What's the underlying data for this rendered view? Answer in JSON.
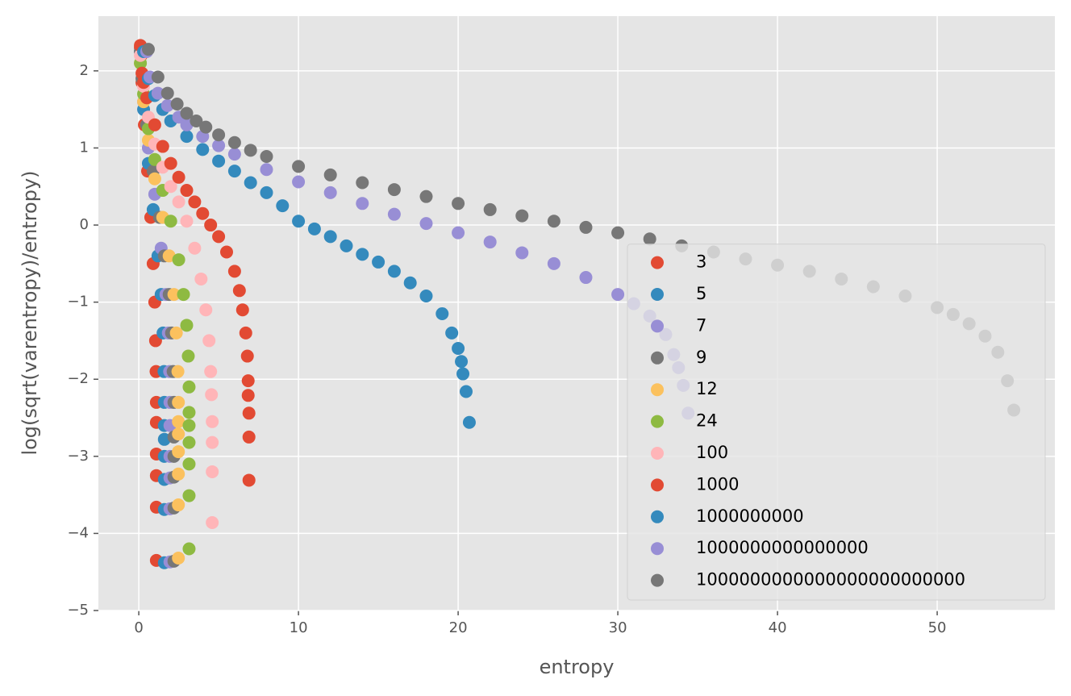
{
  "chart_data": {
    "type": "scatter",
    "xlabel": "entropy",
    "ylabel": "log(sqrt(varentropy)/entropy)",
    "xlim": [
      -2.53,
      57.37
    ],
    "ylim": [
      -5,
      2.71
    ],
    "xticks": [
      0,
      10,
      20,
      30,
      40,
      50
    ],
    "yticks": [
      {
        "value": -5,
        "label": "−5"
      },
      {
        "value": -4,
        "label": "−4"
      },
      {
        "value": -3,
        "label": "−3"
      },
      {
        "value": -2,
        "label": "−2"
      },
      {
        "value": -1,
        "label": "−1"
      },
      0,
      1,
      2
    ],
    "grid": true,
    "legend": "lower right",
    "series": [
      {
        "name": "3",
        "color": "#E24A33",
        "x": [
          0.1,
          0.15,
          0.2,
          0.35,
          0.55,
          0.75,
          0.9,
          1.0,
          1.05,
          1.08,
          1.1,
          1.1,
          1.1,
          1.1,
          1.1,
          1.1
        ],
        "values": [
          2.3,
          2.2,
          1.85,
          1.3,
          0.7,
          0.1,
          -0.5,
          -1.0,
          -1.5,
          -1.9,
          -2.3,
          -2.56,
          -2.97,
          -3.25,
          -3.66,
          -4.35
        ]
      },
      {
        "name": "5",
        "color": "#348ABD",
        "x": [
          0.1,
          0.3,
          0.6,
          0.9,
          1.2,
          1.4,
          1.52,
          1.58,
          1.6,
          1.6,
          1.6,
          1.6,
          1.6,
          1.6,
          1.6
        ],
        "values": [
          2.25,
          1.5,
          0.8,
          0.2,
          -0.4,
          -0.9,
          -1.4,
          -1.9,
          -2.3,
          -2.6,
          -2.78,
          -3.0,
          -3.3,
          -3.69,
          -4.38
        ]
      },
      {
        "name": "7",
        "color": "#988ED5",
        "x": [
          0.1,
          0.3,
          0.6,
          1.0,
          1.4,
          1.7,
          1.85,
          1.93,
          1.95,
          1.95,
          1.95,
          1.95,
          1.95,
          1.95
        ],
        "values": [
          2.25,
          1.6,
          1.0,
          0.4,
          -0.3,
          -0.9,
          -1.4,
          -1.9,
          -2.3,
          -2.6,
          -3.0,
          -3.28,
          -3.68,
          -4.37
        ]
      },
      {
        "name": "9",
        "color": "#777777",
        "x": [
          0.1,
          0.2,
          0.5,
          0.9,
          1.3,
          1.6,
          1.9,
          2.05,
          2.15,
          2.2,
          2.2,
          2.2,
          2.2,
          2.2,
          2.2
        ],
        "values": [
          2.25,
          1.9,
          1.3,
          0.7,
          0.1,
          -0.4,
          -0.9,
          -1.4,
          -1.9,
          -2.3,
          -2.75,
          -3.0,
          -3.27,
          -3.67,
          -4.36
        ]
      },
      {
        "name": "12",
        "color": "#FBC15E",
        "x": [
          0.1,
          0.3,
          0.6,
          1.0,
          1.5,
          1.9,
          2.2,
          2.35,
          2.45,
          2.48,
          2.48,
          2.48,
          2.48,
          2.48,
          2.48,
          2.48
        ],
        "values": [
          2.1,
          1.6,
          1.1,
          0.6,
          0.1,
          -0.4,
          -0.9,
          -1.4,
          -1.9,
          -2.3,
          -2.55,
          -2.71,
          -2.94,
          -3.23,
          -3.63,
          -4.32
        ]
      },
      {
        "name": "24",
        "color": "#8EBA42",
        "x": [
          0.1,
          0.3,
          0.6,
          1.0,
          1.5,
          2.0,
          2.5,
          2.8,
          3.0,
          3.1,
          3.15,
          3.15,
          3.15,
          3.15,
          3.15,
          3.15,
          3.15
        ],
        "values": [
          2.1,
          1.7,
          1.25,
          0.85,
          0.45,
          0.05,
          -0.45,
          -0.9,
          -1.3,
          -1.7,
          -2.1,
          -2.43,
          -2.6,
          -2.82,
          -3.1,
          -3.51,
          -4.2
        ]
      },
      {
        "name": "100",
        "color": "#FFB5B8",
        "x": [
          0.1,
          0.3,
          0.6,
          1.0,
          1.5,
          2.0,
          2.5,
          3.0,
          3.5,
          3.9,
          4.2,
          4.4,
          4.5,
          4.55,
          4.6,
          4.6,
          4.6,
          4.6
        ],
        "values": [
          2.2,
          1.8,
          1.4,
          1.05,
          0.75,
          0.5,
          0.3,
          0.05,
          -0.3,
          -0.7,
          -1.1,
          -1.5,
          -1.9,
          -2.2,
          -2.55,
          -2.82,
          -3.2,
          -3.86
        ]
      },
      {
        "name": "1000",
        "color": "#E24A33",
        "x": [
          0.1,
          0.2,
          0.3,
          0.5,
          1.0,
          1.5,
          2.0,
          2.5,
          3.0,
          3.5,
          4.0,
          4.5,
          5.0,
          5.5,
          6.0,
          6.3,
          6.5,
          6.7,
          6.8,
          6.85,
          6.85,
          6.9,
          6.9,
          6.9
        ],
        "values": [
          2.33,
          1.97,
          1.85,
          1.65,
          1.3,
          1.02,
          0.8,
          0.62,
          0.45,
          0.3,
          0.15,
          0,
          -0.15,
          -0.35,
          -0.6,
          -0.85,
          -1.1,
          -1.4,
          -1.7,
          -2.02,
          -2.21,
          -2.44,
          -2.75,
          -3.31
        ]
      },
      {
        "name": "1000000000",
        "color": "#348ABD",
        "x": [
          0.3,
          0.6,
          1,
          1.5,
          2,
          3,
          4,
          5,
          6,
          7,
          8,
          9,
          10,
          11,
          12,
          13,
          14,
          15,
          16,
          17,
          18,
          19,
          19.6,
          20,
          20.2,
          20.3,
          20.5,
          20.7
        ],
        "values": [
          2.25,
          1.9,
          1.68,
          1.5,
          1.35,
          1.15,
          0.98,
          0.83,
          0.7,
          0.55,
          0.42,
          0.25,
          0.05,
          -0.05,
          -0.15,
          -0.27,
          -0.38,
          -0.48,
          -0.6,
          -0.75,
          -0.92,
          -1.15,
          -1.4,
          -1.6,
          -1.77,
          -1.93,
          -2.16,
          -2.56
        ]
      },
      {
        "name": "1000000000000000",
        "color": "#988ED5",
        "x": [
          0.5,
          0.7,
          1.2,
          1.8,
          2.5,
          3,
          4,
          5,
          6,
          8,
          10,
          12,
          14,
          16,
          18,
          20,
          22,
          24,
          26,
          28,
          30,
          31,
          32,
          33,
          33.5,
          33.8,
          34.1,
          34.4
        ],
        "values": [
          2.25,
          1.92,
          1.71,
          1.55,
          1.4,
          1.3,
          1.15,
          1.03,
          0.92,
          0.72,
          0.56,
          0.42,
          0.28,
          0.14,
          0.02,
          -0.1,
          -0.22,
          -0.36,
          -0.5,
          -0.68,
          -0.9,
          -1.02,
          -1.18,
          -1.42,
          -1.68,
          -1.85,
          -2.08,
          -2.44
        ]
      },
      {
        "name": "1000000000000000000000000",
        "color": "#777777",
        "x": [
          0.6,
          1.2,
          1.8,
          2.4,
          3.0,
          3.6,
          4.2,
          5,
          6,
          7,
          8,
          10,
          12,
          14,
          16,
          18,
          20,
          22,
          24,
          26,
          28,
          30,
          32,
          34,
          36,
          38,
          40,
          42,
          44,
          46,
          48,
          50,
          51,
          52,
          53,
          53.8,
          54.4,
          54.8
        ],
        "values": [
          2.28,
          1.92,
          1.71,
          1.57,
          1.45,
          1.35,
          1.27,
          1.17,
          1.07,
          0.97,
          0.89,
          0.76,
          0.65,
          0.55,
          0.46,
          0.37,
          0.28,
          0.2,
          0.12,
          0.05,
          -0.03,
          -0.1,
          -0.18,
          -0.27,
          -0.35,
          -0.44,
          -0.52,
          -0.6,
          -0.7,
          -0.8,
          -0.92,
          -1.07,
          -1.16,
          -1.28,
          -1.44,
          -1.65,
          -2.02,
          -2.4
        ]
      }
    ]
  }
}
